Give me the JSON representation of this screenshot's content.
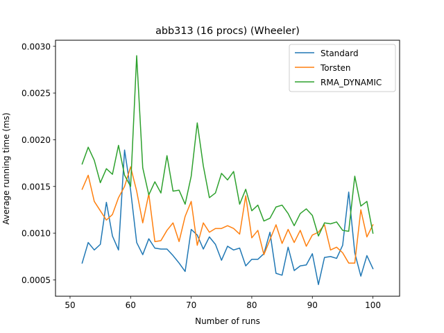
{
  "chart_data": {
    "type": "line",
    "title": "abb313 (16 procs) (Wheeler)",
    "xlabel": "Number of runs",
    "ylabel": "Average running time (ms)",
    "xlim": [
      47.6,
      104.4
    ],
    "ylim": [
      0.000325,
      0.003065
    ],
    "xticks": [
      50,
      60,
      70,
      80,
      90,
      100
    ],
    "xtick_labels": [
      "50",
      "60",
      "70",
      "80",
      "90",
      "100"
    ],
    "yticks": [
      0.0005,
      0.001,
      0.0015,
      0.002,
      0.0025,
      0.003
    ],
    "ytick_labels": [
      "0.0005",
      "0.0010",
      "0.0015",
      "0.0020",
      "0.0025",
      "0.0030"
    ],
    "grid": false,
    "legend_position": "upper right",
    "x": [
      52,
      53,
      54,
      55,
      56,
      57,
      58,
      59,
      60,
      61,
      62,
      63,
      64,
      65,
      66,
      67,
      68,
      69,
      70,
      71,
      72,
      73,
      74,
      75,
      76,
      77,
      78,
      79,
      80,
      81,
      82,
      83,
      84,
      85,
      86,
      87,
      88,
      89,
      90,
      91,
      92,
      93,
      94,
      95,
      96,
      97,
      98,
      99,
      100
    ],
    "series": [
      {
        "name": "Standard",
        "color": "#1f77b4",
        "values": [
          0.00068,
          0.0009,
          0.00082,
          0.00088,
          0.00133,
          0.00097,
          0.00082,
          0.00189,
          0.00146,
          0.0009,
          0.00077,
          0.00094,
          0.00084,
          0.00083,
          0.00083,
          0.00076,
          0.00068,
          0.00059,
          0.00104,
          0.00098,
          0.00083,
          0.00096,
          0.00088,
          0.00071,
          0.00086,
          0.00082,
          0.00084,
          0.00065,
          0.00072,
          0.00072,
          0.00078,
          0.00101,
          0.00057,
          0.00055,
          0.00085,
          0.0006,
          0.00065,
          0.00066,
          0.00078,
          0.00045,
          0.00074,
          0.00075,
          0.00073,
          0.00087,
          0.00144,
          0.00079,
          0.00054,
          0.00076,
          0.00062
        ]
      },
      {
        "name": "Torsten",
        "color": "#ff7f0e",
        "values": [
          0.00147,
          0.00162,
          0.00134,
          0.00124,
          0.00114,
          0.0012,
          0.00138,
          0.0015,
          0.00171,
          0.00145,
          0.00111,
          0.00142,
          0.00091,
          0.00092,
          0.00103,
          0.00111,
          0.00091,
          0.00118,
          0.00134,
          0.00087,
          0.00111,
          0.00101,
          0.00105,
          0.00105,
          0.00108,
          0.00105,
          0.00099,
          0.0014,
          0.00095,
          0.00103,
          0.00077,
          0.00093,
          0.00109,
          0.00089,
          0.00104,
          0.0009,
          0.00103,
          0.00086,
          0.00098,
          0.00101,
          0.00109,
          0.00082,
          0.00085,
          0.00079,
          0.00068,
          0.00068,
          0.00125,
          0.00096,
          0.00109
        ]
      },
      {
        "name": "RMA_DYNAMIC",
        "color": "#2ca02c",
        "values": [
          0.00174,
          0.00192,
          0.00178,
          0.00154,
          0.00169,
          0.00163,
          0.00194,
          0.00162,
          0.0015,
          0.0029,
          0.0017,
          0.00141,
          0.00155,
          0.00143,
          0.00183,
          0.00145,
          0.00146,
          0.00131,
          0.00161,
          0.00218,
          0.00172,
          0.00138,
          0.00143,
          0.00164,
          0.00157,
          0.00166,
          0.00131,
          0.00147,
          0.00124,
          0.0013,
          0.00113,
          0.00116,
          0.00128,
          0.0013,
          0.00121,
          0.00108,
          0.00121,
          0.00126,
          0.00119,
          0.00097,
          0.00111,
          0.0011,
          0.00112,
          0.00103,
          0.00102,
          0.00161,
          0.00129,
          0.00134,
          0.001
        ]
      }
    ]
  }
}
